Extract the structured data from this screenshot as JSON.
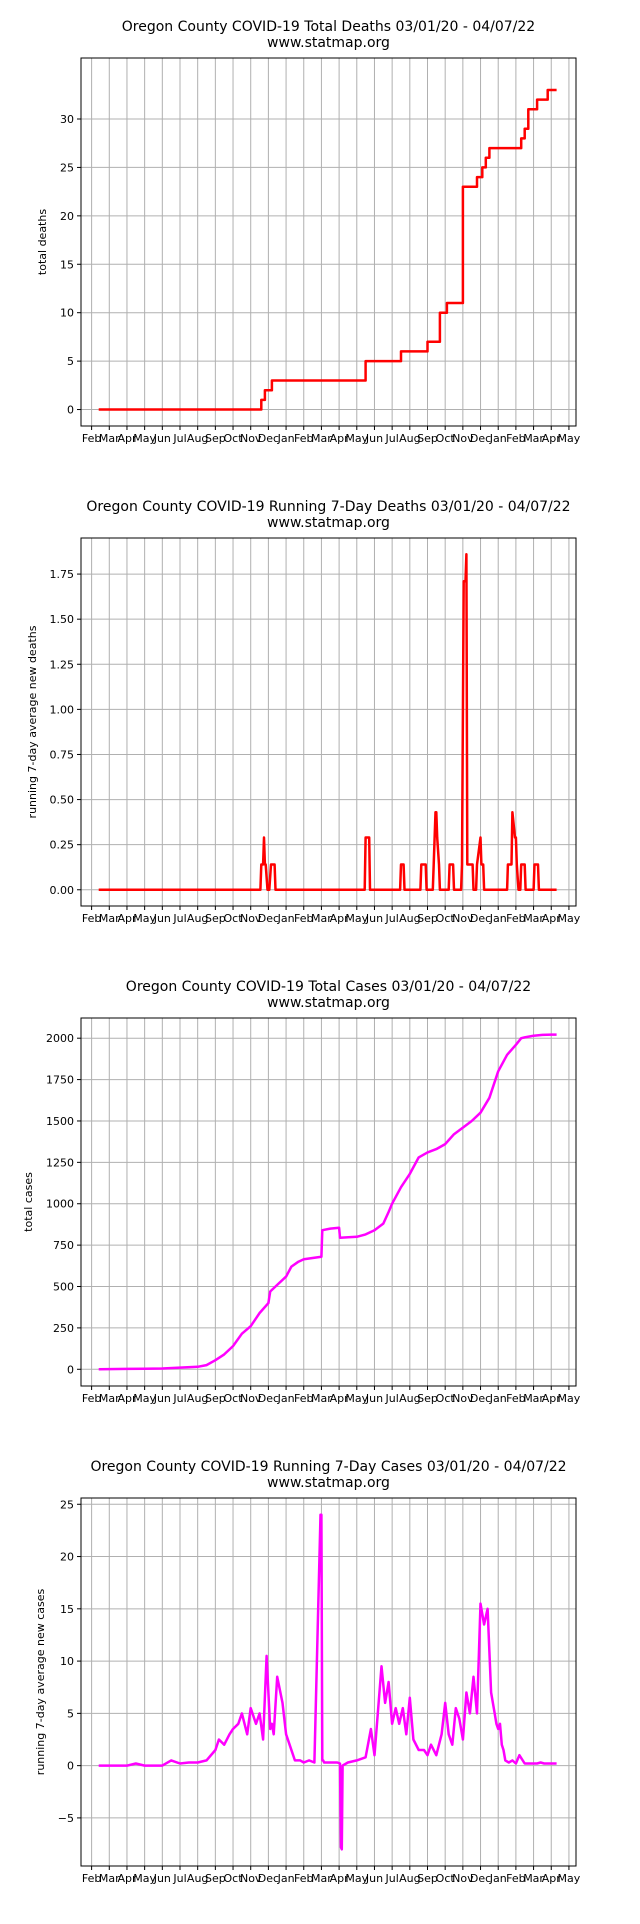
{
  "chart_data": [
    {
      "type": "line",
      "title": "Oregon County COVID-19 Total Deaths 03/01/20 - 04/07/22",
      "subtitle": "www.statmap.org",
      "xlabel": "",
      "ylabel": "total deaths",
      "ylim": [
        -1.7,
        36.3
      ],
      "yticks": [
        0,
        5,
        10,
        15,
        20,
        25,
        30
      ],
      "xticklabels": [
        "Feb",
        "Mar",
        "Apr",
        "May",
        "Jun",
        "Jul",
        "Aug",
        "Sep",
        "Oct",
        "Nov",
        "Dec",
        "Jan",
        "Feb",
        "Mar",
        "Apr",
        "May",
        "Jun",
        "Jul",
        "Aug",
        "Sep",
        "Oct",
        "Nov",
        "Dec",
        "Jan",
        "Feb",
        "Mar",
        "Apr",
        "May"
      ],
      "grid": true,
      "color": "#ff0000",
      "series": [
        {
          "x": [
            0.4,
            9.6,
            9.6,
            9.8,
            9.8,
            10.0,
            10.0,
            10.2,
            10.2,
            10.5,
            10.5,
            15.5,
            15.5,
            17.5,
            17.5,
            19.0,
            19.0,
            19.7,
            19.7,
            20.1,
            20.1,
            21.0,
            21.0,
            21.8,
            21.8,
            21.9,
            21.9,
            22.1,
            22.1,
            22.3,
            22.3,
            22.5,
            22.5,
            22.7,
            22.7,
            24.3,
            24.3,
            24.5,
            24.5,
            24.7,
            24.7,
            25.2,
            25.2,
            25.8,
            25.8,
            26.3,
            26.3
          ],
          "values": [
            0,
            0,
            1,
            1,
            2,
            2,
            2,
            2,
            3,
            3,
            3,
            3,
            5,
            5,
            6,
            6,
            7,
            7,
            10,
            10,
            11,
            11,
            23,
            23,
            24,
            24,
            24,
            24,
            25,
            25,
            26,
            26,
            27,
            27,
            27,
            27,
            28,
            28,
            29,
            29,
            31,
            31,
            32,
            32,
            33,
            33,
            33
          ]
        }
      ]
    },
    {
      "type": "line",
      "title": "Oregon County COVID-19 Running 7-Day Deaths 03/01/20 - 04/07/22",
      "subtitle": "www.statmap.org",
      "xlabel": "",
      "ylabel": "running 7-day average new deaths",
      "ylim": [
        -0.09,
        1.95
      ],
      "yticks": [
        0.0,
        0.25,
        0.5,
        0.75,
        1.0,
        1.25,
        1.5,
        1.75
      ],
      "yticklabels": [
        "0.00",
        "0.25",
        "0.50",
        "0.75",
        "1.00",
        "1.25",
        "1.50",
        "1.75"
      ],
      "xticklabels": [
        "Feb",
        "Mar",
        "Apr",
        "May",
        "Jun",
        "Jul",
        "Aug",
        "Sep",
        "Oct",
        "Nov",
        "Dec",
        "Jan",
        "Feb",
        "Mar",
        "Apr",
        "May",
        "Jun",
        "Jul",
        "Aug",
        "Sep",
        "Oct",
        "Nov",
        "Dec",
        "Jan",
        "Feb",
        "Mar",
        "Apr",
        "May"
      ],
      "grid": true,
      "color": "#ff0000",
      "series": [
        {
          "x": [
            0.4,
            9.55,
            9.6,
            9.7,
            9.75,
            9.8,
            9.85,
            9.95,
            10.05,
            10.15,
            10.2,
            10.35,
            10.4,
            10.5,
            15.45,
            15.5,
            15.7,
            15.75,
            17.45,
            17.5,
            17.65,
            17.7,
            18.6,
            18.65,
            18.9,
            18.95,
            19.3,
            19.35,
            19.45,
            19.5,
            19.55,
            19.65,
            19.7,
            20.2,
            20.25,
            20.45,
            20.5,
            20.9,
            20.95,
            21.05,
            21.15,
            21.2,
            21.25,
            21.55,
            21.6,
            21.75,
            21.8,
            22.0,
            22.05,
            22.15,
            22.2,
            22.3,
            22.35,
            23.5,
            23.55,
            23.75,
            23.8,
            23.95,
            24.0,
            24.05,
            24.15,
            24.25,
            24.3,
            24.5,
            24.55,
            25.0,
            25.05,
            25.25,
            25.3,
            25.7,
            25.75,
            25.85,
            25.9,
            26.3
          ],
          "values": [
            0,
            0,
            0.14,
            0.14,
            0.29,
            0.14,
            0.14,
            0,
            0,
            0.14,
            0.14,
            0.14,
            0,
            0,
            0,
            0.29,
            0.29,
            0,
            0,
            0.14,
            0.14,
            0,
            0,
            0.14,
            0.14,
            0,
            0,
            0.14,
            0.43,
            0.43,
            0.29,
            0.14,
            0,
            0,
            0.14,
            0.14,
            0,
            0,
            0.14,
            1.71,
            1.71,
            1.86,
            0.14,
            0.14,
            0,
            0,
            0.14,
            0.29,
            0.14,
            0.14,
            0,
            0,
            0,
            0,
            0.14,
            0.14,
            0.43,
            0.29,
            0.29,
            0.14,
            0,
            0,
            0.14,
            0.14,
            0,
            0,
            0.14,
            0.14,
            0,
            0,
            0,
            0,
            0,
            0
          ]
        }
      ]
    },
    {
      "type": "line",
      "title": "Oregon County COVID-19 Total Cases 03/01/20 - 04/07/22",
      "subtitle": "www.statmap.org",
      "xlabel": "",
      "ylabel": "total cases",
      "ylim": [
        -101,
        2122
      ],
      "yticks": [
        0,
        250,
        500,
        750,
        1000,
        1250,
        1500,
        1750,
        2000
      ],
      "xticklabels": [
        "Feb",
        "Mar",
        "Apr",
        "May",
        "Jun",
        "Jul",
        "Aug",
        "Sep",
        "Oct",
        "Nov",
        "Dec",
        "Jan",
        "Feb",
        "Mar",
        "Apr",
        "May",
        "Jun",
        "Jul",
        "Aug",
        "Sep",
        "Oct",
        "Nov",
        "Dec",
        "Jan",
        "Feb",
        "Mar",
        "Apr",
        "May"
      ],
      "grid": true,
      "color": "#ff00ff",
      "series": [
        {
          "x": [
            0.4,
            2,
            3,
            4,
            5,
            6,
            6.5,
            7,
            7.5,
            8,
            8.5,
            9,
            9.5,
            10,
            10.1,
            10.5,
            11,
            11.3,
            11.7,
            12,
            13,
            13.05,
            13.5,
            14,
            14.05,
            15,
            15.5,
            16,
            16.5,
            16.8,
            17,
            17.5,
            18,
            18.5,
            19,
            19.5,
            20,
            20.5,
            21,
            21.5,
            22,
            22.5,
            23,
            23.5,
            24,
            24.3,
            24.5,
            25,
            25.5,
            26,
            26.3
          ],
          "values": [
            0,
            2,
            3,
            5,
            10,
            15,
            25,
            55,
            90,
            140,
            215,
            260,
            340,
            400,
            470,
            510,
            560,
            620,
            650,
            665,
            680,
            840,
            850,
            855,
            795,
            800,
            815,
            840,
            880,
            950,
            1000,
            1100,
            1180,
            1280,
            1310,
            1330,
            1360,
            1420,
            1460,
            1500,
            1550,
            1640,
            1800,
            1900,
            1960,
            2000,
            2005,
            2015,
            2020,
            2022,
            2022
          ]
        }
      ]
    },
    {
      "type": "line",
      "title": "Oregon County COVID-19 Running 7-Day Cases 03/01/20 - 04/07/22",
      "subtitle": "www.statmap.org",
      "xlabel": "",
      "ylabel": "running 7-day average new cases",
      "ylim": [
        -9.6,
        25.6
      ],
      "yticks": [
        -5,
        0,
        5,
        10,
        15,
        20,
        25
      ],
      "yticklabels": [
        "−5",
        "0",
        "5",
        "10",
        "15",
        "20",
        "25"
      ],
      "xticklabels": [
        "Feb",
        "Mar",
        "Apr",
        "May",
        "Jun",
        "Jul",
        "Aug",
        "Sep",
        "Oct",
        "Nov",
        "Dec",
        "Jan",
        "Feb",
        "Mar",
        "Apr",
        "May",
        "Jun",
        "Jul",
        "Aug",
        "Sep",
        "Oct",
        "Nov",
        "Dec",
        "Jan",
        "Feb",
        "Mar",
        "Apr",
        "May"
      ],
      "grid": true,
      "color": "#ff00ff",
      "series": [
        {
          "x": [
            0.4,
            2,
            2.5,
            3,
            3.5,
            4,
            4.5,
            5,
            5.5,
            6,
            6.5,
            7,
            7.2,
            7.5,
            7.8,
            8,
            8.3,
            8.5,
            8.8,
            9,
            9.3,
            9.5,
            9.7,
            9.9,
            10.1,
            10.2,
            10.3,
            10.5,
            10.8,
            11,
            11.2,
            11.5,
            11.8,
            12,
            12.3,
            12.6,
            12.95,
            13.0,
            13.05,
            13.1,
            13.15,
            13.5,
            13.9,
            14.05,
            14.1,
            14.15,
            14.2,
            14.5,
            15,
            15.5,
            15.8,
            16,
            16.4,
            16.6,
            16.8,
            17,
            17.2,
            17.4,
            17.6,
            17.8,
            18,
            18.2,
            18.5,
            18.8,
            19,
            19.2,
            19.5,
            19.8,
            20,
            20.2,
            20.4,
            20.6,
            20.8,
            21,
            21.2,
            21.4,
            21.6,
            21.8,
            22,
            22.2,
            22.4,
            22.6,
            22.8,
            22.9,
            23.0,
            23.1,
            23.2,
            23.3,
            23.4,
            23.6,
            23.8,
            24,
            24.2,
            24.5,
            24.8,
            25,
            25.2,
            25.4,
            25.6,
            25.8,
            26,
            26.3
          ],
          "values": [
            0,
            0,
            0.2,
            0,
            0,
            0,
            0.5,
            0.2,
            0.3,
            0.3,
            0.5,
            1.5,
            2.5,
            2.0,
            3.0,
            3.5,
            4.0,
            5.0,
            3.0,
            5.5,
            4.0,
            5.0,
            2.5,
            10.5,
            3.5,
            4.0,
            3.0,
            8.5,
            6.0,
            3.0,
            2.0,
            0.5,
            0.5,
            0.3,
            0.5,
            0.3,
            24.0,
            24.0,
            0.5,
            0.5,
            0.3,
            0.3,
            0.3,
            0.2,
            -7.8,
            -8.0,
            0,
            0.3,
            0.5,
            0.8,
            3.5,
            1.0,
            9.5,
            6.0,
            8.0,
            4.0,
            5.5,
            4.0,
            5.5,
            3.0,
            6.5,
            2.5,
            1.5,
            1.5,
            1.0,
            2.0,
            1.0,
            3.0,
            6.0,
            3.0,
            2.0,
            5.5,
            4.5,
            2.5,
            7.0,
            5.0,
            8.5,
            5.0,
            15.5,
            13.5,
            15.0,
            7.0,
            5.0,
            4.0,
            3.5,
            4.0,
            2.0,
            1.5,
            0.5,
            0.3,
            0.5,
            0.2,
            1.0,
            0.2,
            0.2,
            0.2,
            0.2,
            0.3,
            0.2,
            0.2,
            0.2,
            0.2
          ]
        }
      ]
    }
  ]
}
